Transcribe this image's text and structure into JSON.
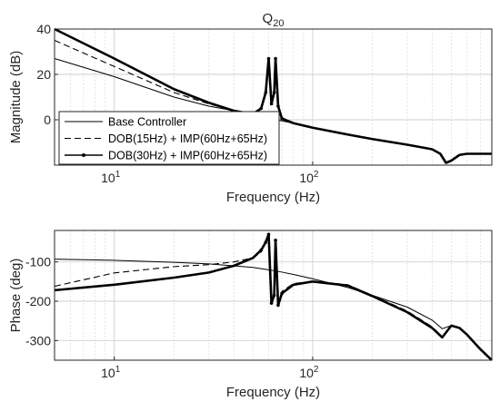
{
  "colors": {
    "background": "#ffffff",
    "line": "#000000",
    "grid": "#cfcfcf",
    "axis": "#262626"
  },
  "chart_data": [
    {
      "type": "line",
      "title": "Q",
      "title_subscript": "20",
      "xlabel": "Frequency (Hz)",
      "ylabel": "Magnitude (dB)",
      "xscale": "log",
      "xlim": [
        5,
        800
      ],
      "ylim": [
        -20,
        40
      ],
      "yticks": [
        0,
        20,
        40
      ],
      "xtick_base": "10",
      "xtick_exps": [
        "1",
        "2"
      ],
      "grid": true,
      "legend": "bottom-left",
      "series": [
        {
          "name": "Base Controller",
          "style": "thin",
          "x": [
            5,
            10,
            20,
            30,
            40,
            50,
            60,
            70,
            80,
            100,
            150,
            200,
            300,
            400,
            440,
            470,
            500,
            550,
            600,
            800
          ],
          "y": [
            27,
            19,
            10,
            6,
            4,
            2.5,
            1,
            -0.5,
            -1.5,
            -3.5,
            -6.5,
            -8.5,
            -11,
            -13,
            -15,
            -19,
            -18,
            -15.5,
            -15,
            -15
          ]
        },
        {
          "name": "DOB(15Hz) + IMP(60Hz+65Hz)",
          "style": "dashed",
          "x": [
            5,
            10,
            20,
            30,
            40,
            50,
            55,
            58,
            60,
            62,
            64,
            65,
            67,
            70,
            80,
            100,
            150,
            200,
            300,
            400,
            440,
            470,
            500,
            550,
            600,
            800
          ],
          "y": [
            35,
            23.5,
            12,
            7,
            4,
            3,
            5,
            12,
            26,
            10,
            12,
            26,
            6,
            1,
            -1.5,
            -3.5,
            -6.5,
            -8.5,
            -11,
            -13,
            -15,
            -19,
            -18,
            -15.5,
            -15,
            -15
          ]
        },
        {
          "name": "DOB(30Hz) + IMP(60Hz+65Hz)",
          "style": "thick-marker",
          "x": [
            5,
            10,
            20,
            30,
            40,
            50,
            55,
            58,
            60,
            62,
            64,
            65,
            67,
            70,
            80,
            100,
            150,
            200,
            300,
            400,
            440,
            470,
            500,
            550,
            600,
            800
          ],
          "y": [
            40,
            27,
            13.5,
            7.5,
            4,
            2.5,
            5,
            12,
            27,
            7,
            12,
            27,
            6,
            0.5,
            -1.5,
            -3.5,
            -6.5,
            -8.5,
            -11,
            -13,
            -15,
            -19,
            -18,
            -15.5,
            -15,
            -15
          ]
        }
      ]
    },
    {
      "type": "line",
      "title": "",
      "xlabel": "Frequency (Hz)",
      "ylabel": "Phase (deg)",
      "xscale": "log",
      "xlim": [
        5,
        800
      ],
      "ylim": [
        -350,
        -20
      ],
      "yticks": [
        -300,
        -200,
        -100
      ],
      "xtick_base": "10",
      "xtick_exps": [
        "1",
        "2"
      ],
      "grid": true,
      "series": [
        {
          "name": "Base Controller",
          "style": "thin",
          "x": [
            5,
            10,
            20,
            30,
            40,
            50,
            60,
            70,
            80,
            100,
            150,
            200,
            300,
            400,
            450,
            500,
            550,
            600,
            700,
            800
          ],
          "y": [
            -93,
            -96,
            -101,
            -105,
            -110,
            -114,
            -120,
            -126,
            -132,
            -143,
            -165,
            -185,
            -215,
            -248,
            -270,
            -262,
            -268,
            -285,
            -322,
            -350
          ]
        },
        {
          "name": "DOB(15Hz) + IMP(60Hz+65Hz)",
          "style": "dashed",
          "x": [
            5,
            10,
            20,
            30,
            40,
            50,
            55,
            58,
            60,
            62,
            64,
            65,
            67,
            70,
            80,
            100,
            150,
            200,
            300,
            400,
            450,
            500,
            550,
            600,
            700,
            800
          ],
          "y": [
            -162,
            -128,
            -112,
            -107,
            -100,
            -90,
            -75,
            -50,
            -30,
            -200,
            -180,
            -45,
            -205,
            -175,
            -155,
            -150,
            -158,
            -185,
            -225,
            -265,
            -290,
            -262,
            -268,
            -285,
            -322,
            -350
          ]
        },
        {
          "name": "DOB(30Hz) + IMP(60Hz+65Hz)",
          "style": "thick-marker",
          "x": [
            5,
            10,
            20,
            30,
            40,
            50,
            55,
            58,
            60,
            62,
            64,
            65,
            67,
            70,
            80,
            100,
            150,
            200,
            300,
            400,
            450,
            500,
            550,
            600,
            700,
            800
          ],
          "y": [
            -172,
            -158,
            -140,
            -127,
            -110,
            -90,
            -70,
            -50,
            -30,
            -205,
            -185,
            -45,
            -210,
            -180,
            -158,
            -150,
            -160,
            -187,
            -228,
            -268,
            -292,
            -262,
            -268,
            -285,
            -322,
            -350
          ]
        }
      ]
    }
  ]
}
